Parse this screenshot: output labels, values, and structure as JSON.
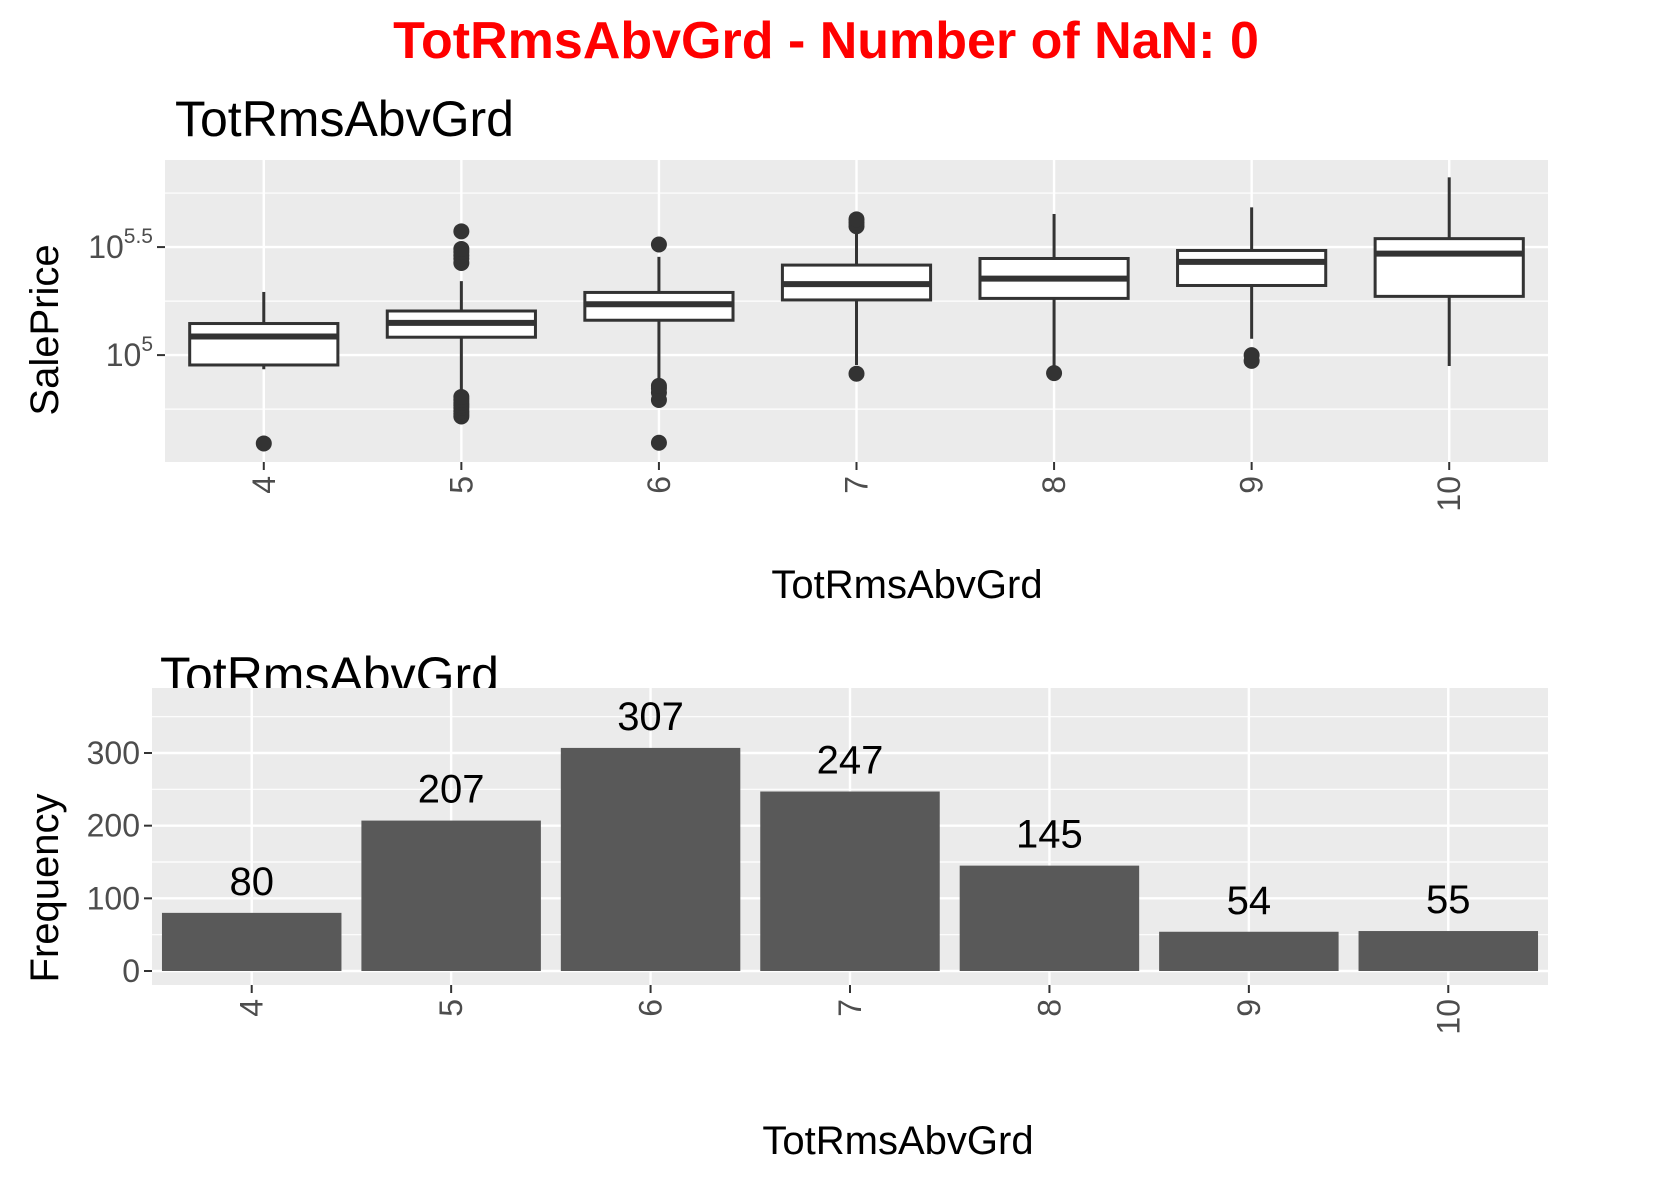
{
  "title": "TotRmsAbvGrd - Number of NaN: 0",
  "chart_data": [
    {
      "type": "box",
      "title": "TotRmsAbvGrd",
      "xlabel": "TotRmsAbvGrd",
      "ylabel": "SalePrice",
      "y_scale": "log10",
      "y_ticks": [
        {
          "value": 100000,
          "base": "10",
          "exp": "5"
        },
        {
          "value": 316228,
          "base": "10",
          "exp": "5.5"
        }
      ],
      "categories": [
        "4",
        "5",
        "6",
        "7",
        "8",
        "9",
        "10"
      ],
      "boxes": [
        {
          "category": "4",
          "low": 86000,
          "q1": 90000,
          "median": 122000,
          "q3": 140000,
          "high": 196000,
          "outliers": [
            39000
          ]
        },
        {
          "category": "5",
          "low": 57000,
          "q1": 121000,
          "median": 141000,
          "q3": 160000,
          "high": 220000,
          "outliers": [
            52000,
            53500,
            55000,
            57000,
            58500,
            60000,
            62000,
            64000,
            267000,
            280000,
            289000,
            300000,
            310000,
            374000
          ]
        },
        {
          "category": "6",
          "low": 62500,
          "q1": 145000,
          "median": 172000,
          "q3": 195000,
          "high": 285000,
          "outliers": [
            39300,
            62000,
            67000,
            70000,
            72000,
            325000
          ]
        },
        {
          "category": "7",
          "low": 90000,
          "q1": 180000,
          "median": 213000,
          "q3": 261000,
          "high": 380000,
          "outliers": [
            82000,
            395000,
            410000,
            425000
          ]
        },
        {
          "category": "8",
          "low": 89000,
          "q1": 183000,
          "median": 226000,
          "q3": 280000,
          "high": 450000,
          "outliers": [
            82500
          ]
        },
        {
          "category": "9",
          "low": 119000,
          "q1": 210000,
          "median": 270000,
          "q3": 305000,
          "high": 483000,
          "outliers": [
            94000,
            100000
          ]
        },
        {
          "category": "10",
          "low": 89000,
          "q1": 187000,
          "median": 295000,
          "q3": 346000,
          "high": 665000,
          "outliers": []
        }
      ]
    },
    {
      "type": "bar",
      "title": "TotRmsAbvGrd",
      "xlabel": "TotRmsAbvGrd",
      "ylabel": "Frequency",
      "categories": [
        "4",
        "5",
        "6",
        "7",
        "8",
        "9",
        "10"
      ],
      "values": [
        80,
        207,
        307,
        247,
        145,
        54,
        55
      ],
      "data_labels": [
        "80",
        "207",
        "307",
        "247",
        "145",
        "54",
        "55"
      ],
      "y_ticks": [
        "0",
        "100",
        "200",
        "300"
      ],
      "ylim": [
        0,
        380
      ]
    }
  ],
  "colors": {
    "title": "#ff0000",
    "panel_bg": "#ebebeb",
    "grid": "#ffffff",
    "bar_fill": "#595959",
    "box_stroke": "#333333",
    "tick_text": "#4d4d4d"
  }
}
